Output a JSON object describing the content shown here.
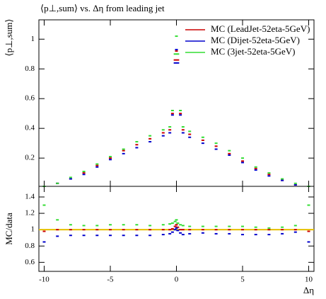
{
  "chart_data": [
    {
      "type": "scatter",
      "title": "⟨p⊥,sum⟩ vs. Δη from leading jet",
      "ylabel": "⟨p⊥,sum⟩",
      "x": [
        -10,
        -9,
        -8,
        -7,
        -6,
        -5,
        -4,
        -3,
        -2,
        -1,
        -0.5,
        -0.3,
        -0.1,
        0,
        0.1,
        0.3,
        0.5,
        1,
        2,
        3,
        4,
        5,
        6,
        7,
        8,
        9,
        10
      ],
      "series": [
        {
          "name": "MC (LeadJet-52eta-5GeV)",
          "color": "#cc0000",
          "values": [
            0.01,
            0.03,
            0.06,
            0.1,
            0.15,
            0.2,
            0.25,
            0.29,
            0.33,
            0.37,
            0.39,
            0.5,
            0.86,
            0.92,
            0.86,
            0.5,
            0.39,
            0.36,
            0.32,
            0.28,
            0.23,
            0.18,
            0.13,
            0.09,
            0.05,
            0.02,
            0.01
          ]
        },
        {
          "name": "MC (Dijet-52eta-5GeV)",
          "color": "#0000cc",
          "values": [
            0.01,
            0.03,
            0.06,
            0.09,
            0.14,
            0.19,
            0.23,
            0.27,
            0.31,
            0.35,
            0.37,
            0.49,
            0.84,
            0.93,
            0.84,
            0.49,
            0.37,
            0.34,
            0.3,
            0.26,
            0.22,
            0.17,
            0.12,
            0.08,
            0.05,
            0.02,
            0.01
          ]
        },
        {
          "name": "MC (3jet-52eta-5GeV)",
          "color": "#33dd33",
          "values": [
            0.01,
            0.03,
            0.07,
            0.11,
            0.16,
            0.21,
            0.26,
            0.31,
            0.35,
            0.39,
            0.41,
            0.52,
            0.9,
            1.02,
            0.9,
            0.52,
            0.41,
            0.38,
            0.34,
            0.3,
            0.25,
            0.2,
            0.14,
            0.1,
            0.06,
            0.03,
            0.01
          ]
        }
      ],
      "xlim": [
        -10.4,
        10.4
      ],
      "ylim": [
        0.01,
        1.13
      ],
      "xticks": [
        -10,
        -5,
        0,
        5,
        10
      ],
      "yticks": [
        0.2,
        0.4,
        0.6,
        0.8,
        1
      ],
      "legend": "upper right"
    },
    {
      "type": "scatter",
      "ylabel": "MC/data",
      "xlabel": "Δη",
      "x": [
        -10,
        -9,
        -8,
        -7,
        -6,
        -5,
        -4,
        -3,
        -2,
        -1,
        -0.5,
        -0.3,
        -0.1,
        0,
        0.1,
        0.3,
        0.5,
        1,
        2,
        3,
        4,
        5,
        6,
        7,
        8,
        9,
        10
      ],
      "series": [
        {
          "color": "#cc0000",
          "values": [
            0.98,
            1.0,
            1.0,
            1.0,
            1.0,
            1.0,
            1.0,
            1.0,
            1.0,
            1.0,
            1.0,
            1.01,
            1.04,
            1.06,
            1.03,
            1.0,
            1.0,
            1.0,
            1.0,
            1.0,
            1.0,
            1.0,
            1.0,
            1.0,
            1.0,
            1.0,
            0.98
          ]
        },
        {
          "color": "#0000cc",
          "values": [
            0.85,
            0.92,
            0.93,
            0.93,
            0.93,
            0.93,
            0.93,
            0.93,
            0.93,
            0.94,
            0.95,
            0.97,
            1.0,
            1.02,
            0.99,
            0.96,
            0.94,
            0.95,
            0.96,
            0.95,
            0.95,
            0.94,
            0.94,
            0.94,
            0.95,
            0.97,
            0.85
          ]
        },
        {
          "color": "#33dd33",
          "values": [
            1.3,
            1.12,
            1.06,
            1.05,
            1.05,
            1.06,
            1.06,
            1.06,
            1.05,
            1.06,
            1.07,
            1.08,
            1.1,
            1.12,
            1.08,
            1.06,
            1.05,
            1.04,
            1.04,
            1.04,
            1.04,
            1.04,
            1.03,
            1.02,
            1.03,
            1.05,
            1.3
          ]
        }
      ],
      "reference": 1,
      "reference_color": "#e6c000",
      "xlim": [
        -10.4,
        10.4
      ],
      "ylim": [
        0.49,
        1.53
      ],
      "xticks": [
        -10,
        -5,
        0,
        5,
        10
      ],
      "yticks": [
        0.6,
        0.8,
        1,
        1.2,
        1.4
      ]
    }
  ]
}
